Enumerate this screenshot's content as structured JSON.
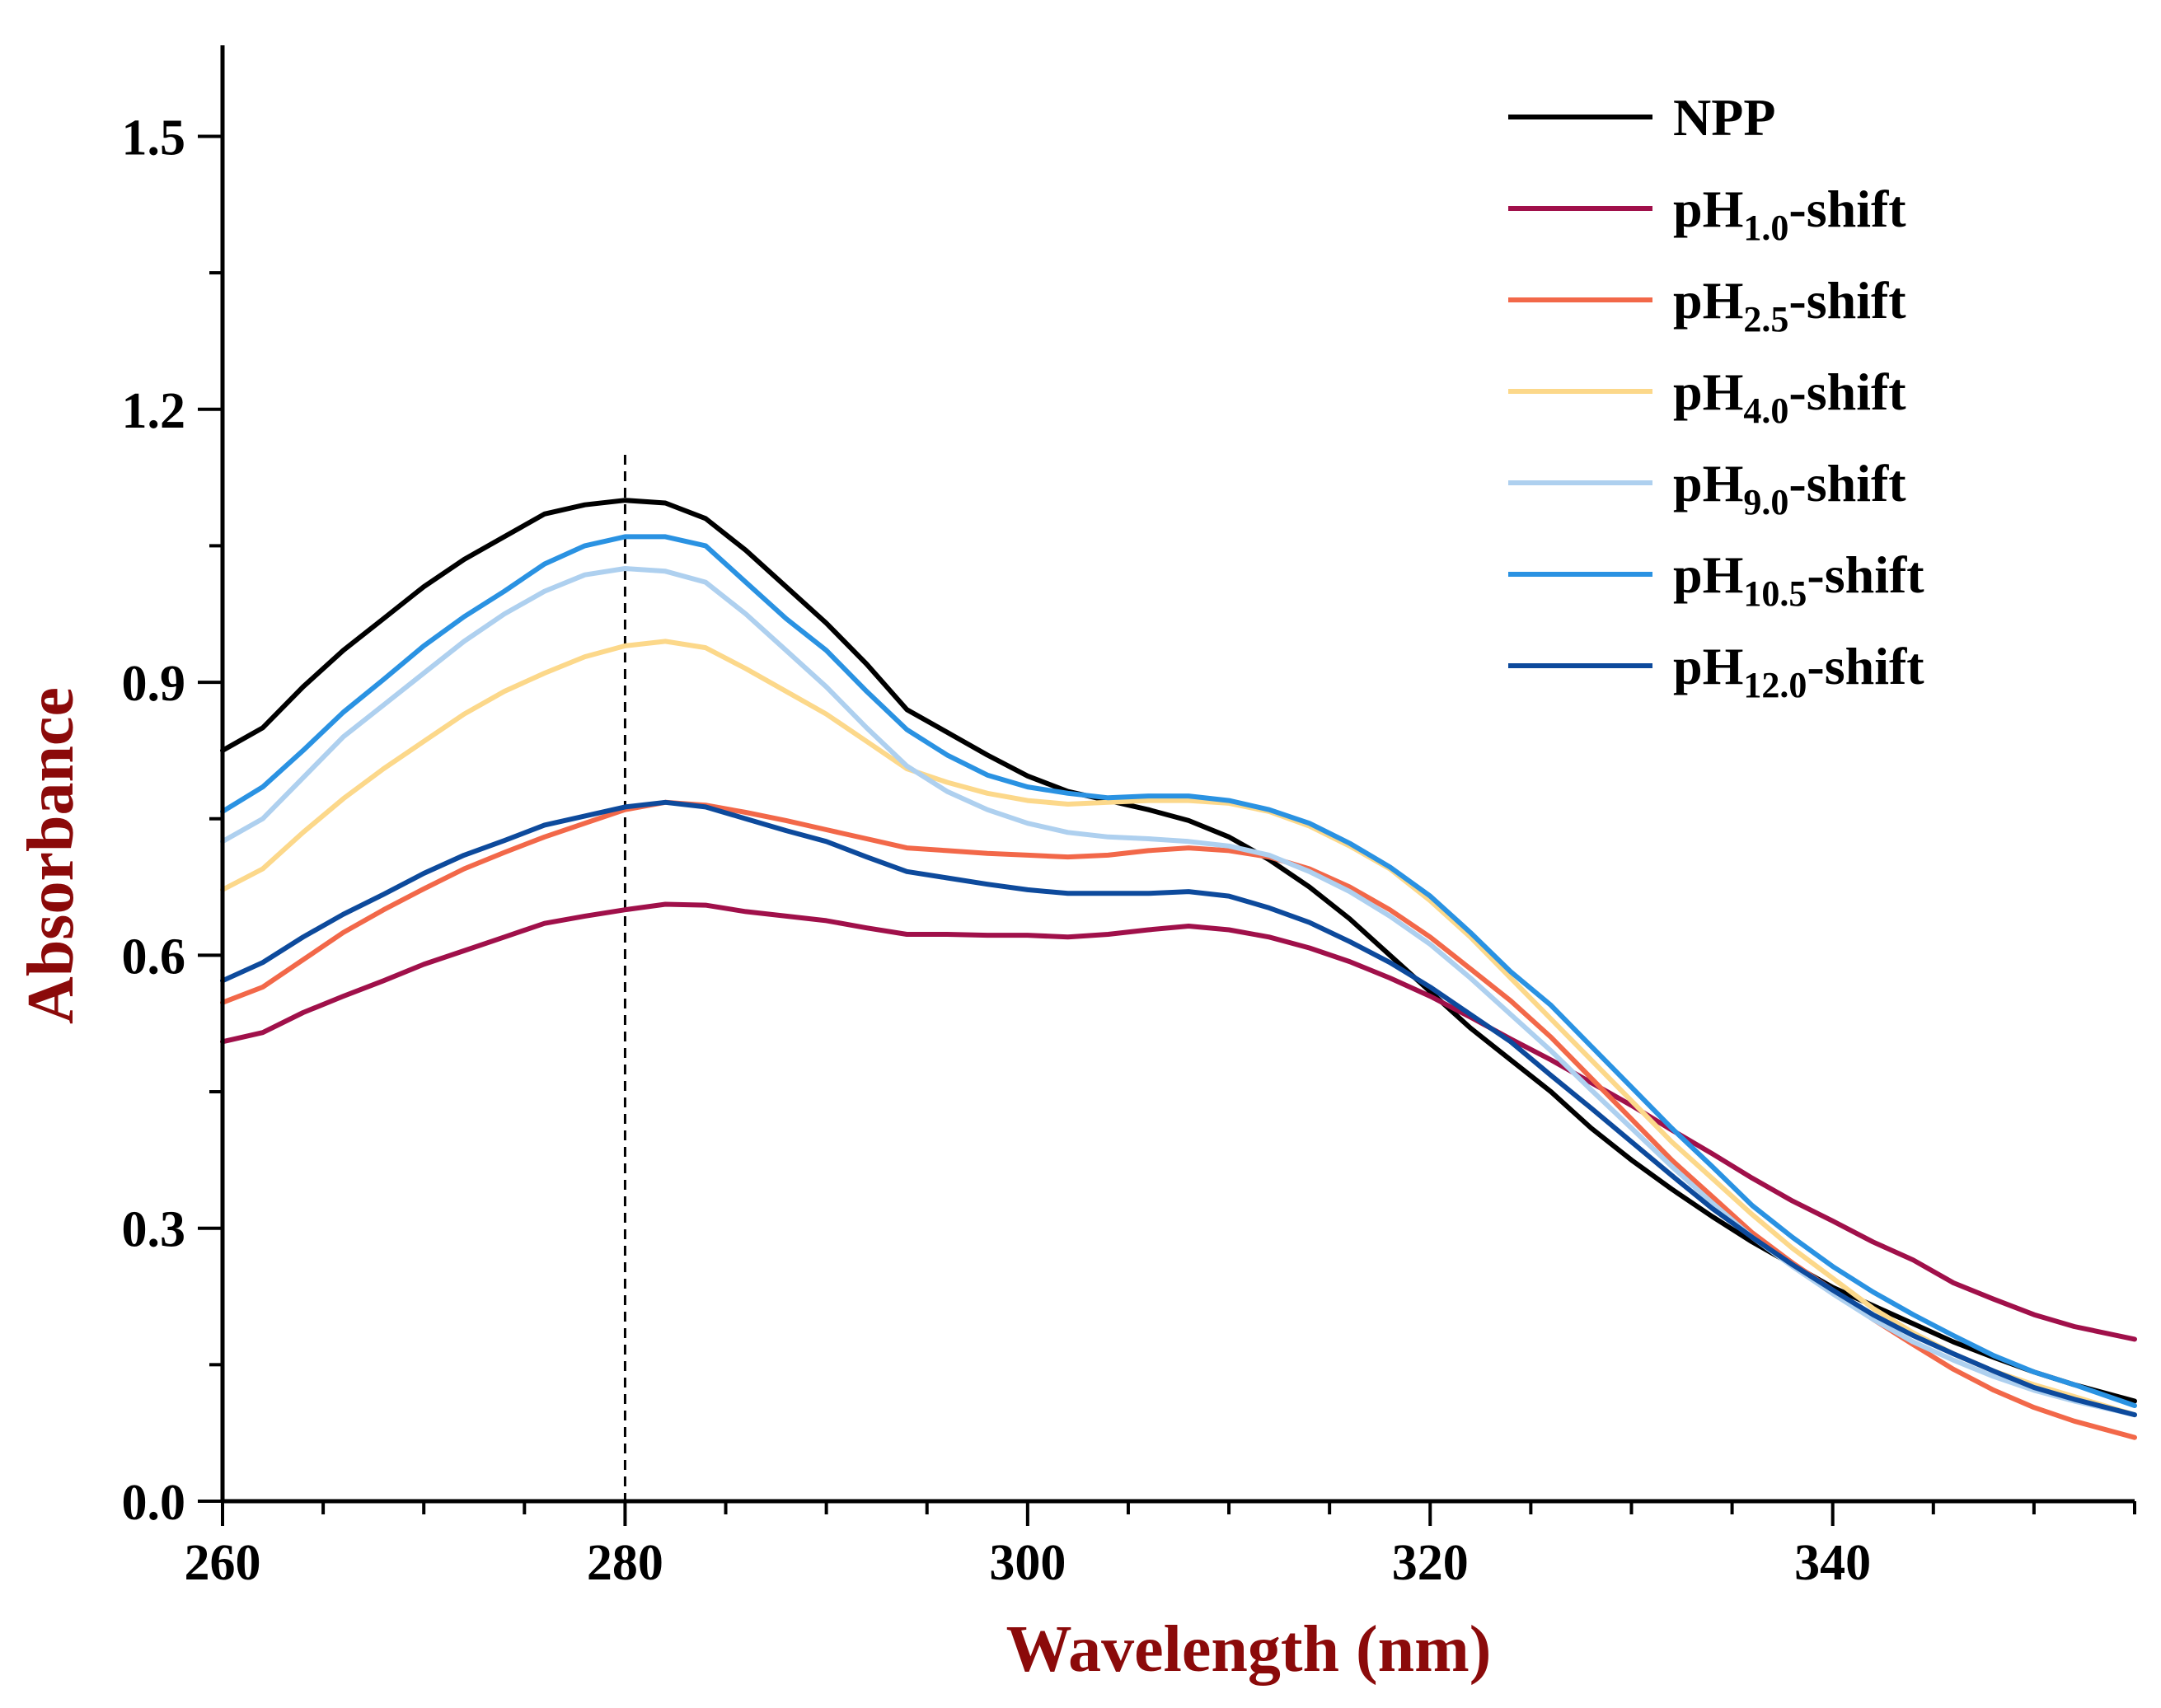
{
  "chart_data": {
    "type": "line",
    "xlabel": "Wavelength (nm)",
    "ylabel": "Absorbance",
    "title": "",
    "xlim": [
      260,
      355
    ],
    "ylim": [
      0.0,
      1.6
    ],
    "x_ticks": [
      "260",
      "280",
      "300",
      "320",
      "340"
    ],
    "y_ticks": [
      "0.0",
      "0.3",
      "0.6",
      "0.9",
      "1.2",
      "1.5"
    ],
    "x_tick_values": [
      260,
      280,
      300,
      320,
      340
    ],
    "y_tick_values": [
      0.0,
      0.3,
      0.6,
      0.9,
      1.2,
      1.5
    ],
    "label_color": "#8b0a0a",
    "reference_line": {
      "x": 280,
      "style": "dashed"
    },
    "legend_position": "top-right",
    "x": [
      260,
      262,
      264,
      266,
      268,
      270,
      272,
      274,
      276,
      278,
      280,
      282,
      284,
      286,
      288,
      290,
      292,
      294,
      296,
      298,
      300,
      302,
      304,
      306,
      308,
      310,
      312,
      314,
      316,
      318,
      320,
      322,
      324,
      326,
      328,
      330,
      332,
      334,
      336,
      338,
      340,
      342,
      344,
      346,
      348,
      350,
      352,
      355
    ],
    "series": [
      {
        "name_main": "NPP",
        "name_sub": "",
        "name_suffix": "",
        "color": "#000000",
        "values": [
          0.825,
          0.85,
          0.895,
          0.935,
          0.97,
          1.005,
          1.035,
          1.06,
          1.085,
          1.095,
          1.1,
          1.097,
          1.08,
          1.045,
          1.005,
          0.965,
          0.92,
          0.87,
          0.845,
          0.82,
          0.797,
          0.78,
          0.77,
          0.76,
          0.748,
          0.73,
          0.705,
          0.675,
          0.64,
          0.6,
          0.56,
          0.52,
          0.485,
          0.45,
          0.41,
          0.375,
          0.343,
          0.313,
          0.285,
          0.26,
          0.235,
          0.215,
          0.195,
          0.175,
          0.158,
          0.142,
          0.128,
          0.11
        ]
      },
      {
        "name_main": "pH",
        "name_sub": "1.0",
        "name_suffix": "-shift",
        "color": "#a0104a",
        "values": [
          0.505,
          0.515,
          0.537,
          0.555,
          0.572,
          0.59,
          0.605,
          0.62,
          0.635,
          0.643,
          0.65,
          0.656,
          0.655,
          0.648,
          0.643,
          0.638,
          0.63,
          0.623,
          0.623,
          0.622,
          0.622,
          0.62,
          0.623,
          0.628,
          0.632,
          0.628,
          0.62,
          0.608,
          0.593,
          0.575,
          0.555,
          0.532,
          0.508,
          0.485,
          0.46,
          0.435,
          0.408,
          0.382,
          0.355,
          0.33,
          0.308,
          0.285,
          0.265,
          0.24,
          0.222,
          0.205,
          0.192,
          0.178
        ]
      },
      {
        "name_main": "pH",
        "name_sub": "2.5",
        "name_suffix": "-shift",
        "color": "#f26849",
        "values": [
          0.548,
          0.565,
          0.595,
          0.625,
          0.65,
          0.673,
          0.695,
          0.713,
          0.73,
          0.745,
          0.76,
          0.768,
          0.765,
          0.757,
          0.748,
          0.738,
          0.728,
          0.718,
          0.715,
          0.712,
          0.71,
          0.708,
          0.71,
          0.715,
          0.718,
          0.715,
          0.708,
          0.695,
          0.675,
          0.65,
          0.62,
          0.585,
          0.55,
          0.51,
          0.465,
          0.42,
          0.375,
          0.335,
          0.295,
          0.262,
          0.232,
          0.2,
          0.172,
          0.145,
          0.122,
          0.103,
          0.088,
          0.07
        ]
      },
      {
        "name_main": "pH",
        "name_sub": "4.0",
        "name_suffix": "-shift",
        "color": "#fcd88a",
        "values": [
          0.672,
          0.695,
          0.735,
          0.772,
          0.805,
          0.835,
          0.865,
          0.89,
          0.91,
          0.928,
          0.94,
          0.945,
          0.938,
          0.915,
          0.89,
          0.865,
          0.835,
          0.805,
          0.79,
          0.778,
          0.77,
          0.766,
          0.768,
          0.77,
          0.77,
          0.767,
          0.758,
          0.742,
          0.72,
          0.695,
          0.66,
          0.62,
          0.575,
          0.53,
          0.485,
          0.44,
          0.395,
          0.355,
          0.315,
          0.278,
          0.245,
          0.212,
          0.185,
          0.162,
          0.143,
          0.128,
          0.115,
          0.095
        ]
      },
      {
        "name_main": "pH",
        "name_sub": "9.0",
        "name_suffix": "-shift",
        "color": "#aed0ef",
        "values": [
          0.725,
          0.75,
          0.795,
          0.84,
          0.875,
          0.91,
          0.945,
          0.975,
          1.0,
          1.018,
          1.025,
          1.022,
          1.01,
          0.975,
          0.935,
          0.895,
          0.85,
          0.808,
          0.78,
          0.76,
          0.745,
          0.735,
          0.73,
          0.728,
          0.725,
          0.72,
          0.71,
          0.692,
          0.67,
          0.643,
          0.612,
          0.575,
          0.535,
          0.495,
          0.452,
          0.41,
          0.368,
          0.328,
          0.29,
          0.258,
          0.228,
          0.2,
          0.175,
          0.155,
          0.137,
          0.122,
          0.11,
          0.095
        ]
      },
      {
        "name_main": "pH",
        "name_sub": "10.5",
        "name_suffix": "-shift",
        "color": "#2a92e2",
        "values": [
          0.758,
          0.785,
          0.825,
          0.867,
          0.903,
          0.94,
          0.972,
          1.0,
          1.03,
          1.05,
          1.06,
          1.06,
          1.05,
          1.01,
          0.97,
          0.935,
          0.89,
          0.848,
          0.82,
          0.798,
          0.785,
          0.778,
          0.773,
          0.775,
          0.775,
          0.77,
          0.76,
          0.745,
          0.723,
          0.697,
          0.665,
          0.625,
          0.582,
          0.545,
          0.5,
          0.455,
          0.41,
          0.368,
          0.325,
          0.29,
          0.258,
          0.23,
          0.205,
          0.182,
          0.16,
          0.142,
          0.128,
          0.105
        ]
      },
      {
        "name_main": "pH",
        "name_sub": "12.0",
        "name_suffix": "-shift",
        "color": "#0d4a9c",
        "values": [
          0.572,
          0.592,
          0.62,
          0.645,
          0.667,
          0.69,
          0.71,
          0.726,
          0.743,
          0.753,
          0.763,
          0.768,
          0.763,
          0.75,
          0.737,
          0.725,
          0.708,
          0.692,
          0.685,
          0.678,
          0.672,
          0.668,
          0.668,
          0.668,
          0.67,
          0.665,
          0.652,
          0.636,
          0.615,
          0.592,
          0.565,
          0.535,
          0.505,
          0.468,
          0.432,
          0.395,
          0.358,
          0.322,
          0.29,
          0.26,
          0.232,
          0.205,
          0.182,
          0.162,
          0.143,
          0.125,
          0.112,
          0.095
        ]
      }
    ]
  }
}
